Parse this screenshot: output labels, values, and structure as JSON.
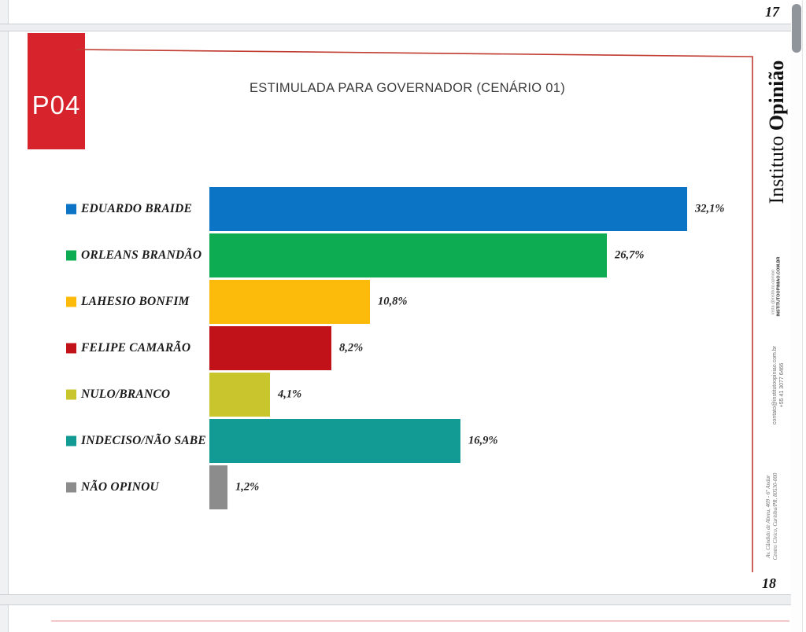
{
  "viewer": {
    "prev_page_number": "17",
    "next_page_number": "18"
  },
  "slide": {
    "question_tag": "P04",
    "title": "ESTIMULADA PARA GOVERNADOR (CENÁRIO 01)"
  },
  "chart_data": {
    "type": "bar",
    "orientation": "horizontal",
    "title": "ESTIMULADA PARA GOVERNADOR (CENÁRIO 01)",
    "categories": [
      "EDUARDO BRAIDE",
      "ORLEANS BRANDÃO",
      "LAHESIO BONFIM",
      "FELIPE CAMARÃO",
      "NULO/BRANCO",
      "INDECISO/NÃO SABE",
      "NÃO OPINOU"
    ],
    "values": [
      32.1,
      26.7,
      10.8,
      8.2,
      4.1,
      16.9,
      1.2
    ],
    "value_labels": [
      "32,1%",
      "26,7%",
      "10,8%",
      "8,2%",
      "4,1%",
      "16,9%",
      "1,2%"
    ],
    "colors": [
      "#0B74C4",
      "#0EAC52",
      "#FCBB0A",
      "#C1121A",
      "#C9C52C",
      "#119B94",
      "#8C8C8C"
    ],
    "xlim": [
      0,
      34
    ],
    "grid": false,
    "legend_position": "left-of-bars"
  },
  "brand_sidebar": {
    "brand": "Instituto Opinião",
    "brand_word1": "Instituto",
    "brand_word2": "Opinião",
    "social_handle": "insta @instituto.opiniao",
    "website": "INSTITUTOOPINIAO.COM.BR",
    "email": "contato@institutoopiniao.com.br",
    "phone": "+55 41 3077 6466",
    "address_line1": "Av. Cândido de Abreu, 469 - 6º Andar",
    "address_line2": "Centro Cívico, Curitiba/PR, 80530-000"
  },
  "colors": {
    "tag_red": "#D7232B",
    "connector_red": "#C03A30"
  }
}
